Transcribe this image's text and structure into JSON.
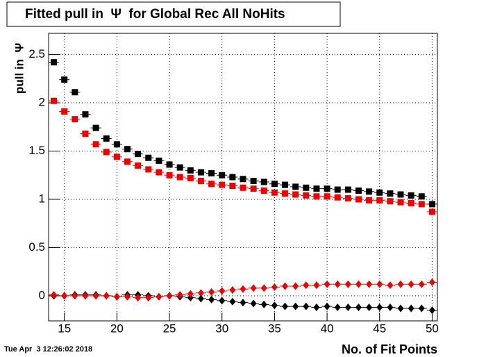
{
  "chart_data": {
    "type": "scatter",
    "title": "Fitted pull in  Ψ  for Global Rec All NoHits",
    "x_label": "No. of Fit Points",
    "y_label": "pull in  Ψ",
    "x": [
      14,
      15,
      16,
      17,
      18,
      19,
      20,
      21,
      22,
      23,
      24,
      25,
      26,
      27,
      28,
      29,
      30,
      31,
      32,
      33,
      34,
      35,
      36,
      37,
      38,
      39,
      40,
      41,
      42,
      43,
      44,
      45,
      46,
      47,
      48,
      49,
      50
    ],
    "xerr": 0.5,
    "series": [
      {
        "color": "#000000",
        "marker": "square",
        "values": [
          2.42,
          2.24,
          2.11,
          1.88,
          1.74,
          1.63,
          1.57,
          1.52,
          1.47,
          1.43,
          1.4,
          1.36,
          1.33,
          1.3,
          1.28,
          1.27,
          1.25,
          1.23,
          1.21,
          1.19,
          1.18,
          1.16,
          1.15,
          1.13,
          1.12,
          1.11,
          1.11,
          1.1,
          1.1,
          1.09,
          1.08,
          1.07,
          1.06,
          1.05,
          1.04,
          1.03,
          0.95
        ]
      },
      {
        "color": "#ee0000",
        "marker": "square",
        "values": [
          2.02,
          1.91,
          1.83,
          1.68,
          1.57,
          1.49,
          1.44,
          1.39,
          1.35,
          1.31,
          1.28,
          1.25,
          1.23,
          1.22,
          1.19,
          1.16,
          1.15,
          1.14,
          1.12,
          1.11,
          1.09,
          1.07,
          1.06,
          1.05,
          1.04,
          1.03,
          1.03,
          1.02,
          1.01,
          1.0,
          0.99,
          0.99,
          0.98,
          0.97,
          0.96,
          0.95,
          0.87
        ]
      },
      {
        "color": "#000000",
        "marker": "diamond",
        "values": [
          0.0,
          0.0,
          0.01,
          0.01,
          0.01,
          0.0,
          -0.01,
          0.01,
          0.01,
          0.0,
          -0.01,
          0.0,
          -0.01,
          -0.02,
          -0.03,
          -0.04,
          -0.05,
          -0.06,
          -0.07,
          -0.08,
          -0.09,
          -0.1,
          -0.11,
          -0.11,
          -0.11,
          -0.12,
          -0.11,
          -0.12,
          -0.12,
          -0.12,
          -0.12,
          -0.12,
          -0.12,
          -0.13,
          -0.13,
          -0.13,
          -0.15
        ]
      },
      {
        "color": "#ee0000",
        "marker": "diamond",
        "values": [
          0.01,
          0.0,
          0.0,
          0.0,
          0.0,
          0.0,
          -0.01,
          -0.01,
          -0.02,
          -0.02,
          -0.01,
          0.0,
          0.01,
          0.02,
          0.03,
          0.04,
          0.05,
          0.06,
          0.07,
          0.08,
          0.08,
          0.09,
          0.1,
          0.1,
          0.11,
          0.11,
          0.12,
          0.12,
          0.12,
          0.12,
          0.12,
          0.12,
          0.11,
          0.12,
          0.12,
          0.12,
          0.14
        ]
      }
    ],
    "xlim": [
      13.5,
      50.5
    ],
    "ylim": [
      -0.26,
      2.72
    ],
    "xticks": [
      15,
      20,
      25,
      30,
      35,
      40,
      45,
      50
    ],
    "yticks": [
      0,
      0.5,
      1,
      1.5,
      2,
      2.5
    ],
    "grid": true
  },
  "footer": {
    "timestamp": "Tue Apr  3 12:26:02 2018"
  }
}
